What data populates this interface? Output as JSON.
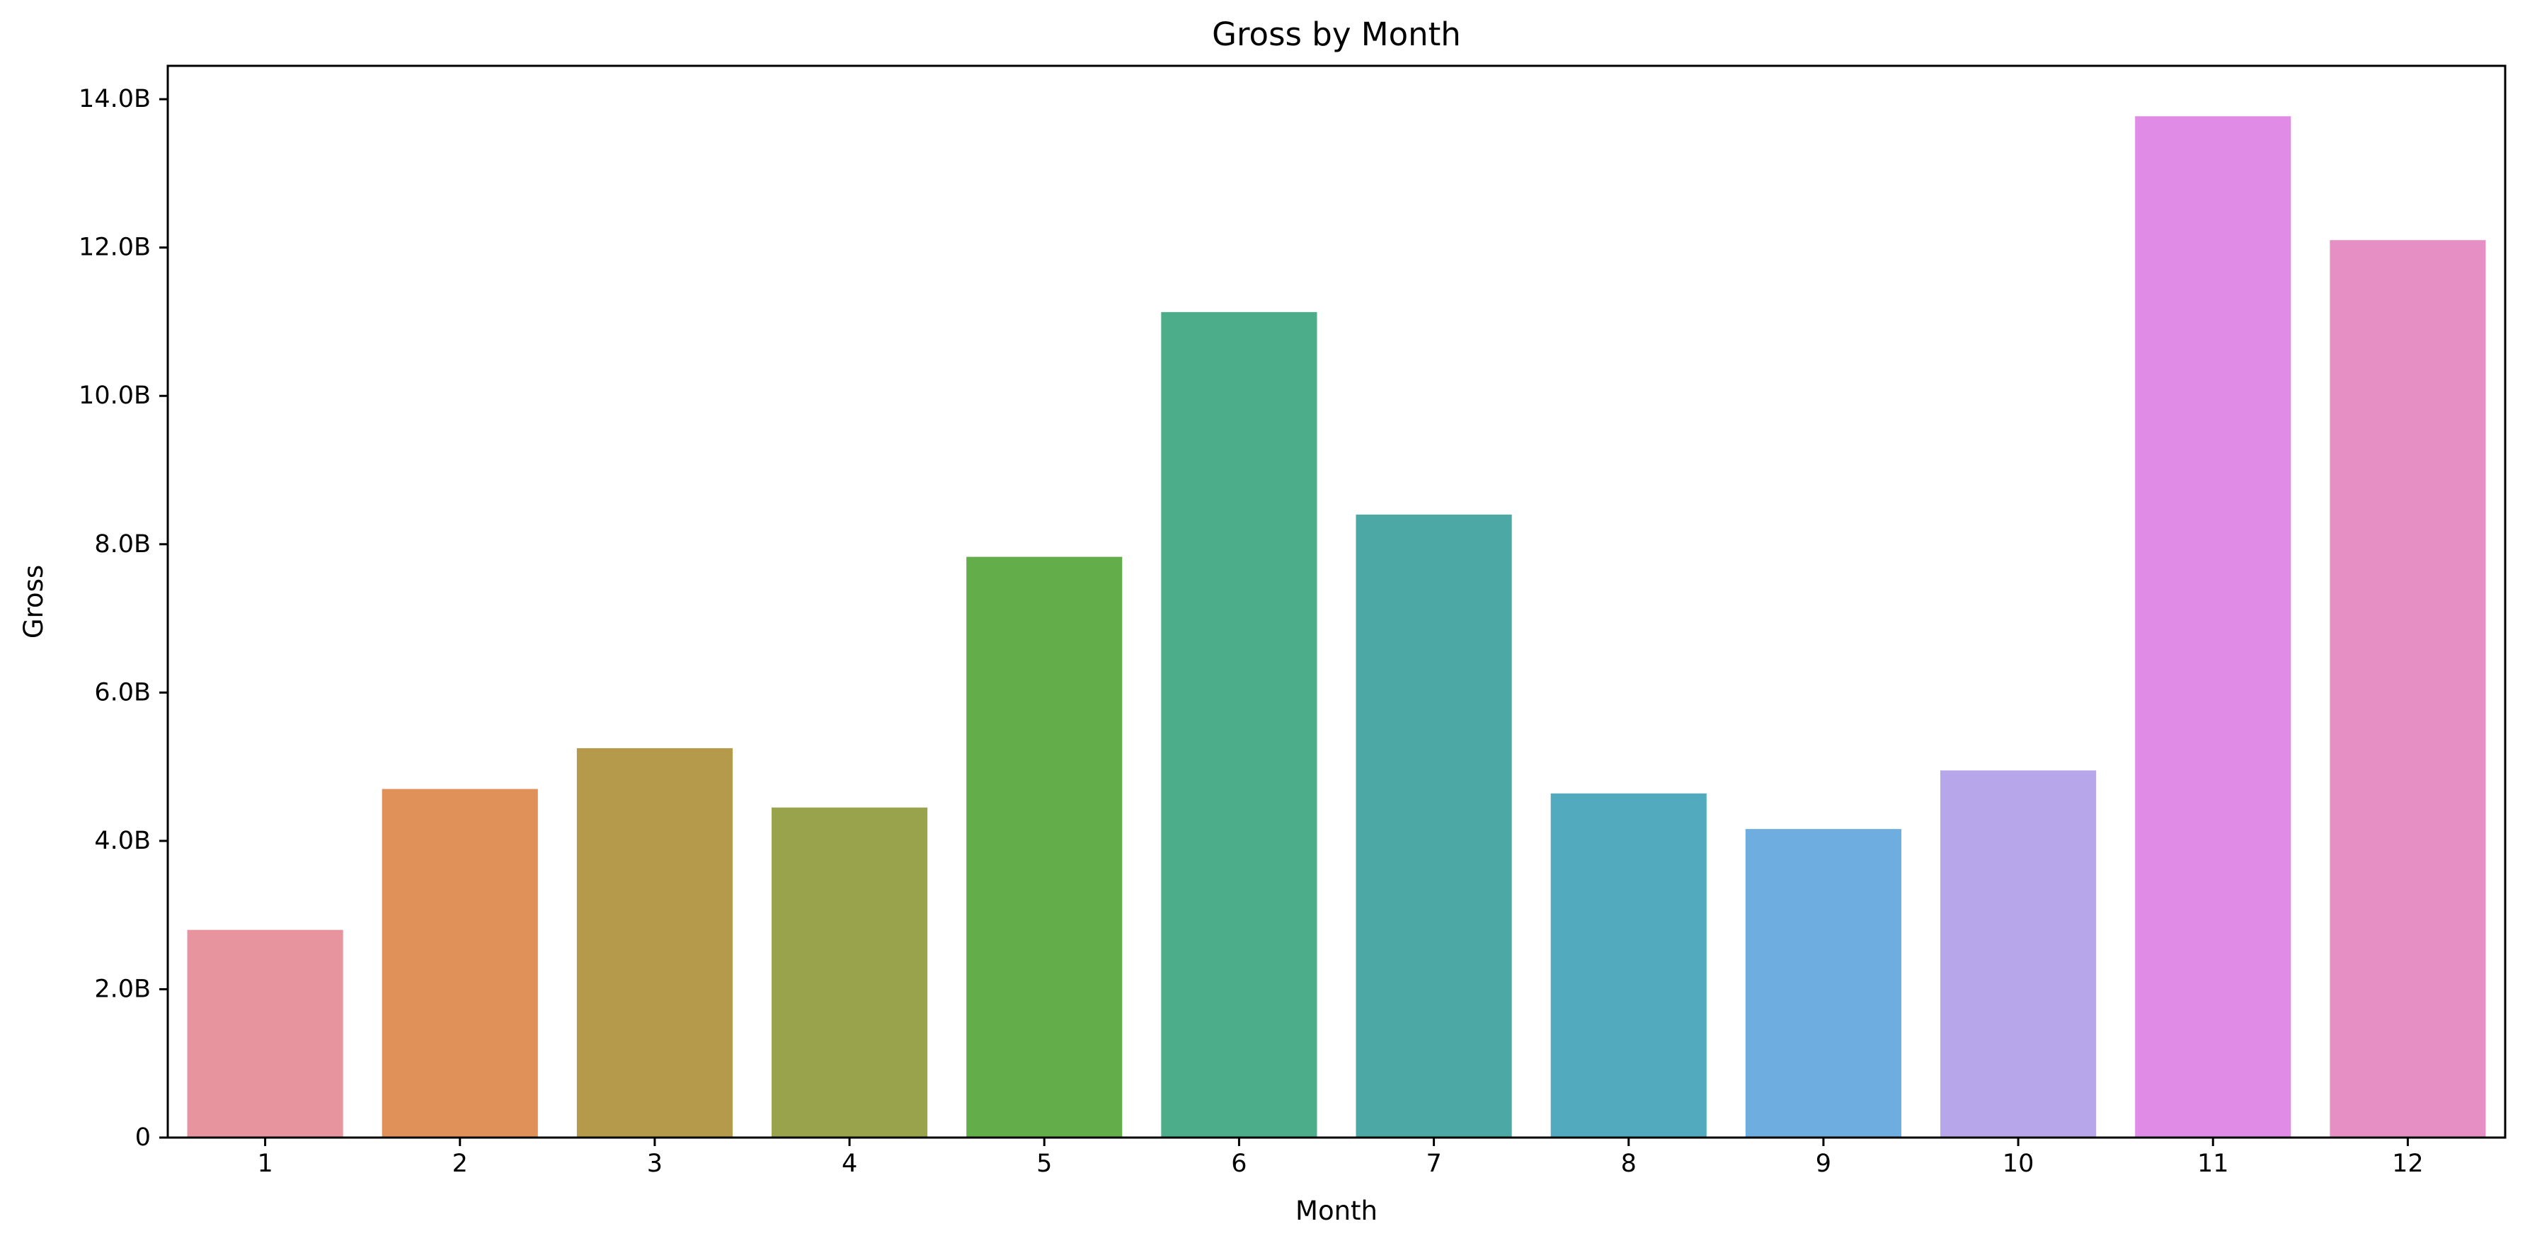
{
  "chart_data": {
    "type": "bar",
    "title": "Gross by Month",
    "xlabel": "Month",
    "ylabel": "Gross",
    "categories": [
      "1",
      "2",
      "3",
      "4",
      "5",
      "6",
      "7",
      "8",
      "9",
      "10",
      "11",
      "12"
    ],
    "values": [
      2800000000.0,
      4700000000.0,
      5250000000.0,
      4450000000.0,
      7830000000.0,
      11130000000.0,
      8400000000.0,
      4640000000.0,
      4160000000.0,
      4950000000.0,
      13770000000.0,
      12100000000.0
    ],
    "ylim": [
      0,
      14450000000.0
    ],
    "yticks": [
      0,
      2000000000.0,
      4000000000.0,
      6000000000.0,
      8000000000.0,
      10000000000.0,
      12000000000.0,
      14000000000.0
    ],
    "ytick_labels": [
      "0",
      "2.0B",
      "4.0B",
      "6.0B",
      "8.0B",
      "10.0B",
      "12.0B",
      "14.0B"
    ],
    "colors": [
      "#e8949f",
      "#e0915a",
      "#b69a4b",
      "#98a34b",
      "#63ae4a",
      "#4cad8a",
      "#4ca8a5",
      "#51aabd",
      "#6daddf",
      "#b7a7ea",
      "#e08ce7",
      "#e68fc4"
    ],
    "grid": false,
    "legend": false
  }
}
